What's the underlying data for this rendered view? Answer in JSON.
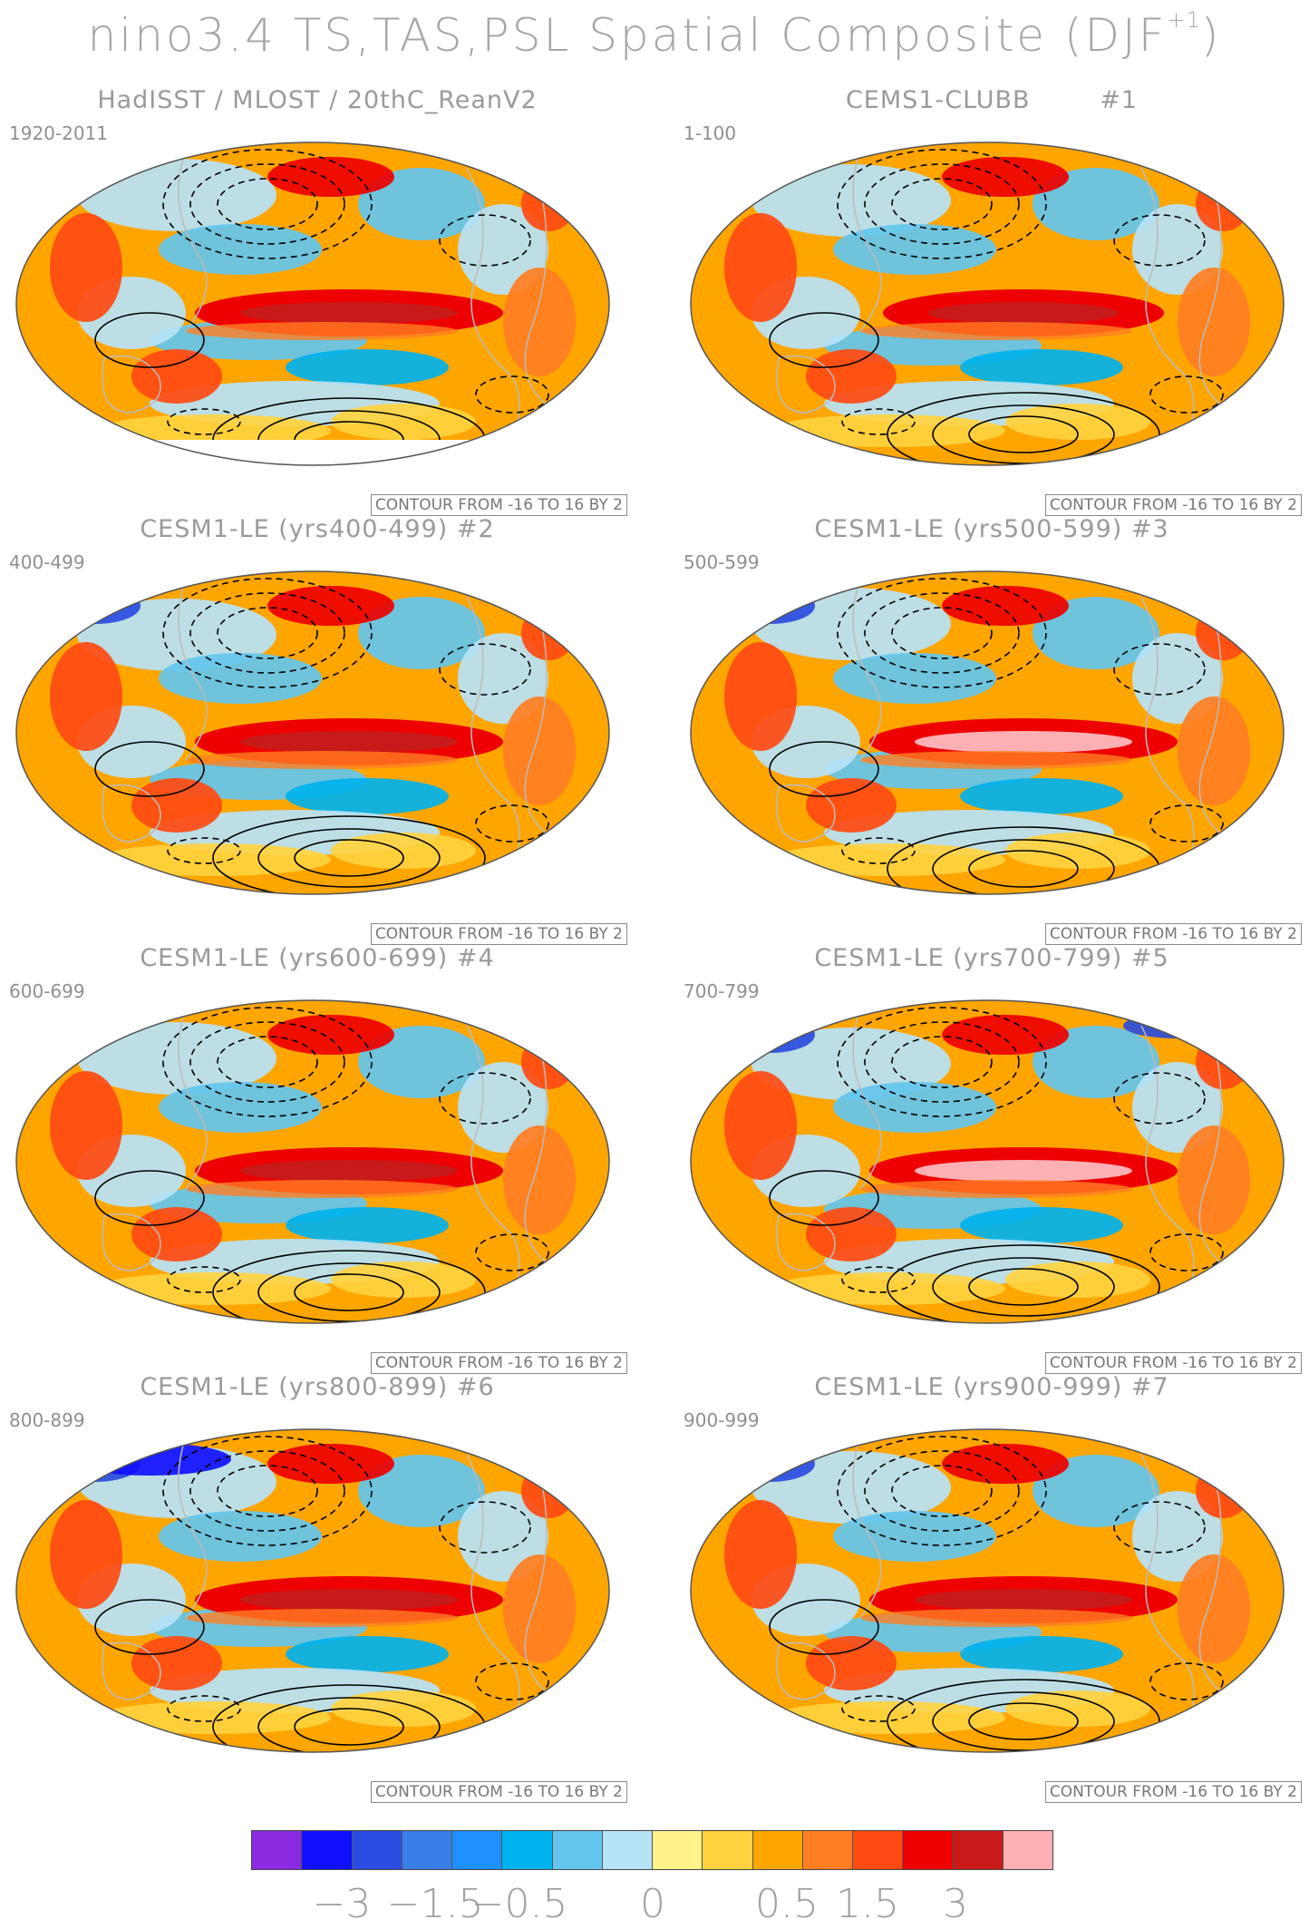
{
  "title": {
    "main": "nino3.4 TS,TAS,PSL Spatial Composite (DJF",
    "sup": "+1",
    "close": ")"
  },
  "contour_note": "CONTOUR FROM -16 TO 16 BY 2",
  "panels": [
    {
      "title": "HadISST / MLOST / 20thC_ReanV2",
      "period": "1920-2011",
      "variant": 0
    },
    {
      "title": "CEMS1-CLUBB        #1",
      "period": "1-100",
      "variant": 1
    },
    {
      "title": "CESM1-LE (yrs400-499) #2",
      "period": "400-499",
      "variant": 2
    },
    {
      "title": "CESM1-LE (yrs500-599) #3",
      "period": "500-599",
      "variant": 3
    },
    {
      "title": "CESM1-LE (yrs600-699) #4",
      "period": "600-699",
      "variant": 4
    },
    {
      "title": "CESM1-LE (yrs700-799) #5",
      "period": "700-799",
      "variant": 5
    },
    {
      "title": "CESM1-LE (yrs800-899) #6",
      "period": "800-899",
      "variant": 6
    },
    {
      "title": "CESM1-LE (yrs900-999) #7",
      "period": "900-999",
      "variant": 7
    }
  ],
  "colorbar": {
    "colors": [
      "#8a2be2",
      "#1010ff",
      "#2a4ce0",
      "#3a7ee8",
      "#1e90ff",
      "#00b2ee",
      "#63c5ee",
      "#b7e3f7",
      "#fff38a",
      "#ffd23f",
      "#ffa500",
      "#ff7e22",
      "#ff4a12",
      "#ee0000",
      "#c81a1a",
      "#ffb0b4"
    ],
    "tick_labels": [
      "-3",
      "-1.5",
      "-0.5",
      "0",
      "0.5",
      "1.5",
      "3"
    ]
  },
  "colors": {
    "land_outline": "#bbbbbb",
    "contour": "#000000",
    "map_border": "#555555"
  }
}
